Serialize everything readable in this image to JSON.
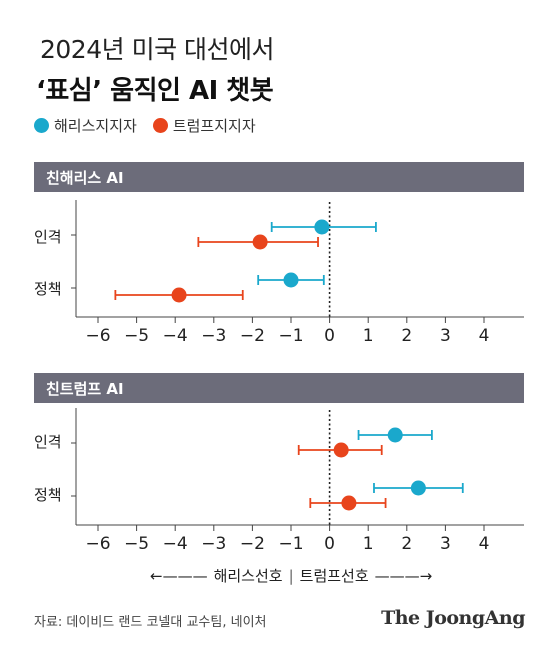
{
  "title_line1": "2024년 미국 대선에서",
  "title_line2": "‘표심’ 움직인 AI 챗봇",
  "legend": [
    {
      "label": "해리스지지자",
      "color": "#1aa8cc"
    },
    {
      "label": "트럼프지지자",
      "color": "#e8441c"
    }
  ],
  "direction": {
    "left_label": "해리스선호",
    "right_label": "트럼프선호",
    "left_arrow": "←———",
    "right_arrow": "———→",
    "separator": "|"
  },
  "source": "자료: 데이비드 랜드 코넬대 교수팀, 네이처",
  "brand": "The JoongAng",
  "chart_data": [
    {
      "type": "scatter",
      "title": "친해리스 AI",
      "categories": [
        "인격",
        "정책"
      ],
      "xlim": [
        -6,
        4
      ],
      "xticks": [
        -6,
        -5,
        -4,
        -3,
        -2,
        -1,
        0,
        1,
        2,
        3,
        4
      ],
      "xtick_labels": [
        "−6",
        "−5",
        "−4",
        "−3",
        "−2",
        "−1",
        "0",
        "1",
        "2",
        "3",
        "4"
      ],
      "series": [
        {
          "name": "해리스지지자",
          "color": "#1aa8cc",
          "points": [
            {
              "category": "인격",
              "value": -0.2,
              "low": -1.5,
              "high": 1.2
            },
            {
              "category": "정책",
              "value": -1.0,
              "low": -1.85,
              "high": -0.15
            }
          ]
        },
        {
          "name": "트럼프지지자",
          "color": "#e8441c",
          "points": [
            {
              "category": "인격",
              "value": -1.8,
              "low": -3.4,
              "high": -0.3
            },
            {
              "category": "정책",
              "value": -3.9,
              "low": -5.55,
              "high": -2.25
            }
          ]
        }
      ]
    },
    {
      "type": "scatter",
      "title": "친트럼프 AI",
      "categories": [
        "인격",
        "정책"
      ],
      "xlim": [
        -6,
        4
      ],
      "xticks": [
        -6,
        -5,
        -4,
        -3,
        -2,
        -1,
        0,
        1,
        2,
        3,
        4
      ],
      "xtick_labels": [
        "−6",
        "−5",
        "−4",
        "−3",
        "−2",
        "−1",
        "0",
        "1",
        "2",
        "3",
        "4"
      ],
      "series": [
        {
          "name": "해리스지지자",
          "color": "#1aa8cc",
          "points": [
            {
              "category": "인격",
              "value": 1.7,
              "low": 0.75,
              "high": 2.65
            },
            {
              "category": "정책",
              "value": 2.3,
              "low": 1.15,
              "high": 3.45
            }
          ]
        },
        {
          "name": "트럼프지지자",
          "color": "#e8441c",
          "points": [
            {
              "category": "인격",
              "value": 0.3,
              "low": -0.8,
              "high": 1.35
            },
            {
              "category": "정책",
              "value": 0.5,
              "low": -0.5,
              "high": 1.45
            }
          ]
        }
      ]
    }
  ]
}
